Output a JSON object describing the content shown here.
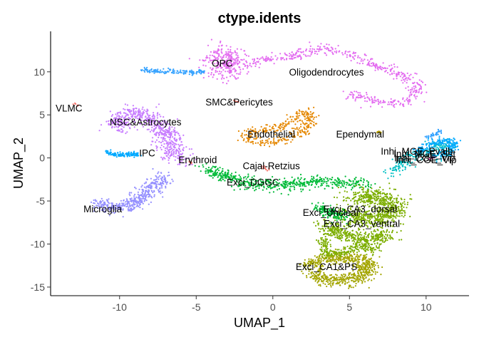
{
  "chart_data": {
    "type": "scatter",
    "title": "ctype.idents",
    "xlabel": "UMAP_1",
    "ylabel": "UMAP_2",
    "xlim": [
      -14.5,
      12.8
    ],
    "ylim": [
      -16,
      14.7
    ],
    "x_ticks": [
      -10,
      -5,
      0,
      5,
      10
    ],
    "y_ticks": [
      -15,
      -10,
      -5,
      0,
      5,
      10
    ],
    "x_tick_labels": [
      "-10",
      "-5",
      "0",
      "5",
      "10"
    ],
    "y_tick_labels": [
      "-15",
      "-10",
      "-5",
      "0",
      "5",
      "10"
    ],
    "grid": false,
    "legend": "none",
    "clusters": [
      {
        "name": "OPC",
        "label_xy": [
          -3.3,
          11.0
        ],
        "color": "#e36cf0",
        "path": [
          [
            -4.0,
            11.0
          ],
          [
            -3.4,
            12.2
          ],
          [
            -2.6,
            12.0
          ],
          [
            -2.4,
            10.9
          ],
          [
            -3.0,
            9.9
          ],
          [
            -3.8,
            10.0
          ]
        ],
        "width": 1.2,
        "n": 260
      },
      {
        "name": "Oligodendrocytes",
        "label_xy": [
          3.5,
          10.0
        ],
        "color": "#e36cf0",
        "path": [
          [
            -3.3,
            11.0
          ],
          [
            -1.8,
            10.9
          ],
          [
            -0.4,
            11.5
          ],
          [
            1.3,
            11.8
          ],
          [
            2.5,
            12.5
          ],
          [
            3.6,
            12.8
          ],
          [
            4.7,
            12.1
          ],
          [
            6.0,
            11.2
          ],
          [
            7.4,
            10.3
          ],
          [
            8.6,
            9.4
          ],
          [
            9.4,
            8.3
          ],
          [
            9.2,
            7.0
          ],
          [
            8.2,
            6.2
          ],
          [
            6.8,
            6.5
          ],
          [
            5.5,
            7.3
          ],
          [
            4.8,
            7.0
          ]
        ],
        "width": 0.65,
        "n": 520
      },
      {
        "name": "VLMC",
        "label_xy": [
          -13.3,
          5.8
        ],
        "color": "#f8766d",
        "path": [
          [
            -12.9,
            6.3
          ],
          [
            -12.7,
            6.1
          ]
        ],
        "width": 0.15,
        "n": 6
      },
      {
        "name": "NSC&Astrocytes",
        "label_xy": [
          -8.3,
          4.2
        ],
        "color": "#c77cff",
        "path": [
          [
            -10.3,
            3.2
          ],
          [
            -9.6,
            5.0
          ],
          [
            -8.7,
            5.2
          ],
          [
            -7.8,
            4.3
          ],
          [
            -7.1,
            3.2
          ],
          [
            -6.8,
            1.6
          ],
          [
            -6.3,
            0.4
          ],
          [
            -5.8,
            -0.3
          ]
        ],
        "width": 1.0,
        "n": 620
      },
      {
        "name": "SMC&Pericytes",
        "label_xy": [
          -2.2,
          6.5
        ],
        "color": "#f8766d",
        "path": [
          [
            -2.5,
            6.6
          ],
          [
            -2.3,
            6.5
          ]
        ],
        "width": 0.12,
        "n": 8
      },
      {
        "name": "Endothelial",
        "label_xy": [
          -0.1,
          2.8
        ],
        "color": "#e58700",
        "path": [
          [
            -2.0,
            2.5
          ],
          [
            -1.0,
            3.2
          ],
          [
            0.3,
            3.5
          ],
          [
            1.4,
            4.5
          ],
          [
            2.1,
            5.4
          ],
          [
            2.5,
            4.8
          ],
          [
            2.2,
            3.5
          ],
          [
            1.2,
            2.4
          ],
          [
            -0.4,
            1.8
          ],
          [
            -1.7,
            2.2
          ]
        ],
        "width": 0.6,
        "n": 330
      },
      {
        "name": "Ependymal",
        "label_xy": [
          5.7,
          2.8
        ],
        "color": "#b79f00",
        "path": [
          [
            6.8,
            3.1
          ],
          [
            7.1,
            2.9
          ]
        ],
        "width": 0.15,
        "n": 12
      },
      {
        "name": "IPC",
        "label_xy": [
          -8.2,
          0.6
        ],
        "color": "#00a9ff",
        "path": [
          [
            -10.9,
            0.6
          ],
          [
            -10.0,
            0.4
          ],
          [
            -9.2,
            0.5
          ],
          [
            -8.8,
            0.3
          ]
        ],
        "width": 0.3,
        "n": 120
      },
      {
        "name": "Erythroid",
        "label_xy": [
          -4.9,
          -0.2
        ],
        "color": "#f8766d",
        "path": [
          [
            -5.5,
            -0.4
          ],
          [
            -5.2,
            -0.6
          ]
        ],
        "width": 0.12,
        "n": 6
      },
      {
        "name": "Cajal-Retzius",
        "label_xy": [
          -0.1,
          -0.9
        ],
        "color": "#f8766d",
        "path": [
          [
            -0.6,
            -1.1
          ],
          [
            -0.3,
            -1.5
          ]
        ],
        "width": 0.2,
        "n": 12
      },
      {
        "name": "Inhi_MGE_Pvalb",
        "label_xy": [
          9.4,
          0.8
        ],
        "color": "#00bfc4",
        "path": [
          [
            7.4,
            -2.0
          ],
          [
            8.2,
            -1.0
          ],
          [
            9.0,
            0.0
          ],
          [
            9.8,
            0.6
          ],
          [
            10.6,
            1.4
          ],
          [
            11.4,
            1.5
          ],
          [
            11.2,
            0.2
          ]
        ],
        "width": 0.7,
        "n": 260
      },
      {
        "name": "Inhi_MGE_Sst",
        "label_xy": [
          9.9,
          0.5
        ],
        "color": "#00a9ff",
        "path": [
          [
            9.5,
            0.8
          ],
          [
            10.4,
            1.6
          ],
          [
            11.4,
            2.0
          ],
          [
            11.8,
            1.4
          ],
          [
            11.3,
            0.5
          ],
          [
            10.5,
            0.2
          ]
        ],
        "width": 0.55,
        "n": 220
      },
      {
        "name": "Inhi_CGE_Vip",
        "label_xy": [
          9.9,
          0.0
        ],
        "color": "#35a2ff",
        "path": [
          [
            10.0,
            2.4
          ],
          [
            10.7,
            2.8
          ],
          [
            10.9,
            3.2
          ]
        ],
        "width": 0.2,
        "n": 40
      },
      {
        "name": "Inhi_CGE_Vip",
        "label_xy": [
          10.0,
          -0.2
        ],
        "color": "#ff61c3",
        "path": [
          [
            10.2,
            -0.1
          ],
          [
            10.6,
            0.2
          ]
        ],
        "width": 0.15,
        "n": 8
      },
      {
        "name": "Exci_DGGC",
        "label_xy": [
          -1.3,
          -2.8
        ],
        "color": "#00ba38",
        "path": [
          [
            -4.5,
            -1.2
          ],
          [
            -3.2,
            -2.1
          ],
          [
            -1.5,
            -2.9
          ],
          [
            0.2,
            -3.1
          ],
          [
            2.0,
            -2.9
          ],
          [
            3.5,
            -2.7
          ],
          [
            5.0,
            -2.9
          ],
          [
            6.2,
            -3.1
          ]
        ],
        "width": 0.75,
        "n": 560
      },
      {
        "name": "Microglia",
        "label_xy": [
          -11.1,
          -5.9
        ],
        "color": "#9590ff",
        "path": [
          [
            -11.4,
            -5.3
          ],
          [
            -10.3,
            -5.8
          ],
          [
            -9.4,
            -5.5
          ],
          [
            -8.5,
            -4.4
          ],
          [
            -7.6,
            -3.0
          ],
          [
            -7.1,
            -2.0
          ]
        ],
        "width": 0.85,
        "n": 420
      },
      {
        "name": "Exci_CA3_dorsal",
        "label_xy": [
          5.7,
          -5.9
        ],
        "color": "#7cae00",
        "path": [
          [
            5.2,
            -4.7
          ],
          [
            6.4,
            -4.4
          ],
          [
            7.6,
            -4.9
          ],
          [
            8.0,
            -6.1
          ],
          [
            7.3,
            -7.0
          ],
          [
            6.0,
            -7.2
          ],
          [
            5.0,
            -6.3
          ]
        ],
        "width": 1.2,
        "n": 720
      },
      {
        "name": "Exci_Unclear",
        "label_xy": [
          3.8,
          -6.3
        ],
        "color": "#00ba38",
        "path": [
          [
            3.0,
            -5.7
          ],
          [
            3.9,
            -6.5
          ],
          [
            4.7,
            -6.9
          ]
        ],
        "width": 0.6,
        "n": 160
      },
      {
        "name": "Exci_CA3_ventral",
        "label_xy": [
          5.8,
          -7.6
        ],
        "color": "#7cae00",
        "path": [
          [
            3.4,
            -7.8
          ],
          [
            4.4,
            -8.6
          ],
          [
            5.5,
            -9.3
          ],
          [
            6.6,
            -9.6
          ],
          [
            7.6,
            -8.7
          ]
        ],
        "width": 0.9,
        "n": 420
      },
      {
        "name": "Exci_CA1&PS",
        "label_xy": [
          3.5,
          -12.6
        ],
        "color": "#a3a500",
        "path": [
          [
            2.4,
            -12.6
          ],
          [
            3.6,
            -11.5
          ],
          [
            5.0,
            -11.6
          ],
          [
            6.2,
            -12.0
          ],
          [
            6.2,
            -13.3
          ],
          [
            4.8,
            -14.3
          ],
          [
            3.2,
            -14.1
          ],
          [
            2.6,
            -13.3
          ]
        ],
        "width": 0.85,
        "n": 700
      },
      {
        "name": "",
        "label_xy": [
          4.5,
          -10.5
        ],
        "color": "#7cae00",
        "path": [
          [
            3.5,
            -9.0
          ],
          [
            3.3,
            -10.5
          ],
          [
            3.6,
            -11.3
          ],
          [
            4.8,
            -10.8
          ],
          [
            6.0,
            -10.3
          ],
          [
            6.8,
            -10.8
          ]
        ],
        "width": 0.5,
        "n": 220
      },
      {
        "name": "",
        "label_xy": [
          -7.0,
          10.0
        ],
        "color": "#35a2ff",
        "path": [
          [
            -8.5,
            10.2
          ],
          [
            -7.5,
            10.1
          ],
          [
            -6.3,
            10.0
          ],
          [
            -5.0,
            9.9
          ],
          [
            -4.5,
            10.1
          ]
        ],
        "width": 0.3,
        "n": 140
      }
    ]
  }
}
